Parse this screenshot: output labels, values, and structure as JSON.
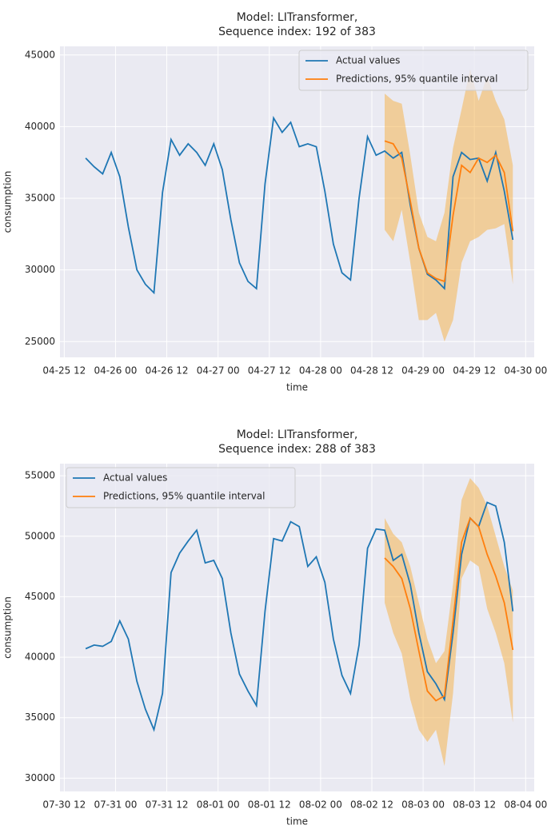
{
  "chart_data": [
    {
      "type": "line",
      "title": [
        "Model: LITransformer,",
        "Sequence index: 192 of 383"
      ],
      "xlabel": "time",
      "ylabel": "consumption",
      "x": [
        "04-25 17",
        "04-25 19",
        "04-25 21",
        "04-25 23",
        "04-26 01",
        "04-26 03",
        "04-26 05",
        "04-26 07",
        "04-26 09",
        "04-26 11",
        "04-26 13",
        "04-26 15",
        "04-26 17",
        "04-26 19",
        "04-26 21",
        "04-26 23",
        "04-27 01",
        "04-27 03",
        "04-27 05",
        "04-27 07",
        "04-27 09",
        "04-27 11",
        "04-27 13",
        "04-27 15",
        "04-27 17",
        "04-27 19",
        "04-27 21",
        "04-27 23",
        "04-28 01",
        "04-28 03",
        "04-28 05",
        "04-28 07",
        "04-28 09",
        "04-28 11",
        "04-28 13",
        "04-28 15",
        "04-28 17",
        "04-28 19",
        "04-28 21",
        "04-28 23",
        "04-29 01",
        "04-29 03",
        "04-29 05",
        "04-29 07",
        "04-29 09",
        "04-29 11",
        "04-29 13",
        "04-29 15",
        "04-29 17",
        "04-29 19",
        "04-29 21"
      ],
      "series": [
        {
          "name": "Actual values",
          "color": "#1f77b4",
          "values": [
            37800,
            37200,
            36700,
            38200,
            36500,
            33000,
            30000,
            29000,
            28400,
            35400,
            39100,
            38000,
            38800,
            38200,
            37300,
            38800,
            37000,
            33500,
            30500,
            29200,
            28700,
            36000,
            40600,
            39600,
            40300,
            38600,
            38800,
            38600,
            35500,
            31800,
            29800,
            29300,
            35000,
            39300,
            38000,
            38300,
            37800,
            38200,
            34500,
            31500,
            29700,
            29300,
            28700,
            36500,
            38200,
            37700,
            37800,
            36200,
            38200,
            35500,
            32100
          ]
        },
        {
          "name": "Predictions, 95% quantile interval",
          "color": "#ff7f0e",
          "band_color": "#f5b041",
          "values": [
            null,
            null,
            null,
            null,
            null,
            null,
            null,
            null,
            null,
            null,
            null,
            null,
            null,
            null,
            null,
            null,
            null,
            null,
            null,
            null,
            null,
            null,
            null,
            null,
            null,
            null,
            null,
            null,
            null,
            null,
            null,
            null,
            null,
            null,
            null,
            39000,
            38800,
            37800,
            34800,
            31500,
            29800,
            29400,
            29200,
            33800,
            37300,
            36800,
            37800,
            37500,
            38000,
            36800,
            32700
          ],
          "lower": [
            null,
            null,
            null,
            null,
            null,
            null,
            null,
            null,
            null,
            null,
            null,
            null,
            null,
            null,
            null,
            null,
            null,
            null,
            null,
            null,
            null,
            null,
            null,
            null,
            null,
            null,
            null,
            null,
            null,
            null,
            null,
            null,
            null,
            null,
            null,
            32800,
            32000,
            34200,
            30500,
            26500,
            26500,
            27000,
            25000,
            26500,
            30500,
            32000,
            32300,
            32800,
            32900,
            33200,
            29000
          ],
          "upper": [
            null,
            null,
            null,
            null,
            null,
            null,
            null,
            null,
            null,
            null,
            null,
            null,
            null,
            null,
            null,
            null,
            null,
            null,
            null,
            null,
            null,
            null,
            null,
            null,
            null,
            null,
            null,
            null,
            null,
            null,
            null,
            null,
            null,
            null,
            null,
            42300,
            41800,
            41600,
            38000,
            34000,
            32300,
            32000,
            34000,
            38500,
            41200,
            44000,
            41800,
            43500,
            41800,
            40500,
            37300
          ]
        }
      ],
      "xlim": [
        "04-25 11",
        "04-30 02"
      ],
      "xticks": [
        "04-25 12",
        "04-26 00",
        "04-26 12",
        "04-27 00",
        "04-27 12",
        "04-28 00",
        "04-28 12",
        "04-29 00",
        "04-29 12",
        "04-30 00"
      ],
      "ylim": [
        23900,
        45600
      ],
      "yticks": [
        25000,
        30000,
        35000,
        40000,
        45000
      ],
      "grid": true,
      "legend": "upper right"
    },
    {
      "type": "line",
      "title": [
        "Model: LITransformer,",
        "Sequence index: 288 of 383"
      ],
      "xlabel": "time",
      "ylabel": "consumption",
      "x": [
        "07-30 17",
        "07-30 19",
        "07-30 21",
        "07-30 23",
        "07-31 01",
        "07-31 03",
        "07-31 05",
        "07-31 07",
        "07-31 09",
        "07-31 11",
        "07-31 13",
        "07-31 15",
        "07-31 17",
        "07-31 19",
        "07-31 21",
        "07-31 23",
        "08-01 01",
        "08-01 03",
        "08-01 05",
        "08-01 07",
        "08-01 09",
        "08-01 11",
        "08-01 13",
        "08-01 15",
        "08-01 17",
        "08-01 19",
        "08-01 21",
        "08-01 23",
        "08-02 01",
        "08-02 03",
        "08-02 05",
        "08-02 07",
        "08-02 09",
        "08-02 11",
        "08-02 13",
        "08-02 15",
        "08-02 17",
        "08-02 19",
        "08-02 21",
        "08-02 23",
        "08-03 01",
        "08-03 03",
        "08-03 05",
        "08-03 07",
        "08-03 09",
        "08-03 11",
        "08-03 13",
        "08-03 15",
        "08-03 17",
        "08-03 19",
        "08-03 21"
      ],
      "series": [
        {
          "name": "Actual values",
          "color": "#1f77b4",
          "values": [
            40700,
            41000,
            40900,
            41300,
            43000,
            41500,
            38000,
            35700,
            34000,
            37000,
            47000,
            48600,
            49600,
            50500,
            47800,
            48000,
            46500,
            42000,
            38600,
            37200,
            36000,
            43800,
            49800,
            49600,
            51200,
            50800,
            47500,
            48300,
            46200,
            41500,
            38500,
            37000,
            41000,
            49000,
            50600,
            50500,
            48000,
            48500,
            46000,
            42000,
            38800,
            37800,
            36500,
            42000,
            48500,
            51500,
            50800,
            52800,
            52500,
            49500,
            43800
          ]
        },
        {
          "name": "Predictions, 95% quantile interval",
          "color": "#ff7f0e",
          "band_color": "#f5b041",
          "values": [
            null,
            null,
            null,
            null,
            null,
            null,
            null,
            null,
            null,
            null,
            null,
            null,
            null,
            null,
            null,
            null,
            null,
            null,
            null,
            null,
            null,
            null,
            null,
            null,
            null,
            null,
            null,
            null,
            null,
            null,
            null,
            null,
            null,
            null,
            null,
            48200,
            47500,
            46500,
            44000,
            40500,
            37200,
            36400,
            36800,
            43000,
            49500,
            51500,
            50800,
            48500,
            46700,
            44500,
            40600
          ],
          "lower": [
            null,
            null,
            null,
            null,
            null,
            null,
            null,
            null,
            null,
            null,
            null,
            null,
            null,
            null,
            null,
            null,
            null,
            null,
            null,
            null,
            null,
            null,
            null,
            null,
            null,
            null,
            null,
            null,
            null,
            null,
            null,
            null,
            null,
            null,
            null,
            44500,
            42000,
            40300,
            36500,
            34000,
            33000,
            34000,
            31000,
            37000,
            46500,
            48000,
            47500,
            44000,
            42000,
            39500,
            34600
          ],
          "upper": [
            null,
            null,
            null,
            null,
            null,
            null,
            null,
            null,
            null,
            null,
            null,
            null,
            null,
            null,
            null,
            null,
            null,
            null,
            null,
            null,
            null,
            null,
            null,
            null,
            null,
            null,
            null,
            null,
            null,
            null,
            null,
            null,
            null,
            null,
            null,
            51500,
            50200,
            49500,
            47500,
            44500,
            41500,
            39500,
            40500,
            46000,
            53000,
            54800,
            54000,
            52500,
            50000,
            47500,
            45500
          ]
        }
      ],
      "xlim": [
        "07-30 11",
        "08-04 02"
      ],
      "xticks": [
        "07-30 12",
        "07-31 00",
        "07-31 12",
        "08-01 00",
        "08-01 12",
        "08-02 00",
        "08-02 12",
        "08-03 00",
        "08-03 12",
        "08-04 00"
      ],
      "ylim": [
        28900,
        56000
      ],
      "yticks": [
        30000,
        35000,
        40000,
        45000,
        50000,
        55000
      ],
      "grid": true,
      "legend": "upper left"
    }
  ]
}
